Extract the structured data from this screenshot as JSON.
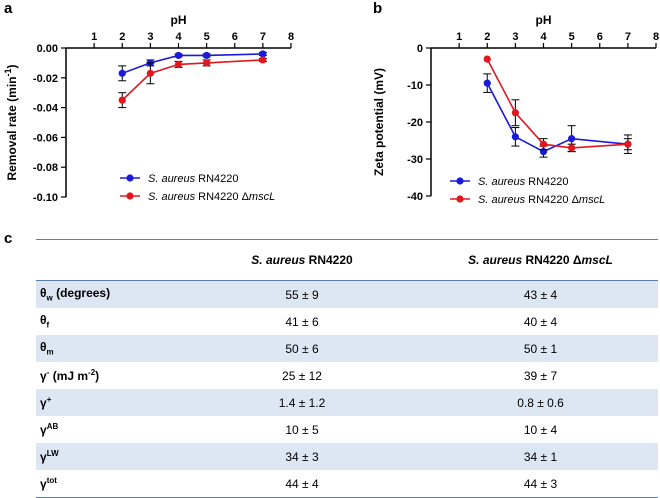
{
  "panels": {
    "a": "a",
    "b": "b",
    "c": "c"
  },
  "colors": {
    "series1": "#1a1adb",
    "series2": "#e3161d",
    "axis": "#000000",
    "table_shade": "#dde7f3",
    "table_rule": "#5b7fb3"
  },
  "chart_data": [
    {
      "type": "line",
      "title": "",
      "xlabel": "pH",
      "ylabel": "Removal rate (min",
      "ylabel_sup": "-1",
      "ylabel_close": ")",
      "xlim": [
        0,
        8
      ],
      "ylim": [
        -0.1,
        0.0
      ],
      "x_ticks": [
        1,
        2,
        3,
        4,
        5,
        6,
        7,
        8
      ],
      "x_tick_labels": [
        "1",
        "2",
        "3",
        "4",
        "5",
        "6",
        "7",
        "8"
      ],
      "y_ticks": [
        0.0,
        -0.02,
        -0.04,
        -0.06,
        -0.08,
        -0.1
      ],
      "y_tick_labels": [
        "0.00",
        "-0.02",
        "-0.04",
        "-0.06",
        "-0.08",
        "-0.10"
      ],
      "x_axis_position": "top",
      "legend_position": "bottom-center",
      "series": [
        {
          "name": "S. aureus RN4220",
          "name_italic": "S. aureus",
          "name_rest": " RN4220",
          "color": "#1a1adb",
          "x": [
            2,
            3,
            4,
            5,
            7
          ],
          "y": [
            -0.017,
            -0.01,
            -0.005,
            -0.005,
            -0.004
          ],
          "err": [
            0.005,
            0.002,
            0.001,
            0.001,
            0.001
          ]
        },
        {
          "name": "S. aureus RN4220 ΔmscL",
          "name_italic": "S. aureus",
          "name_rest": " RN4220 Δ",
          "name_italic2": "mscL",
          "color": "#e3161d",
          "x": [
            2,
            3,
            4,
            5,
            7
          ],
          "y": [
            -0.035,
            -0.017,
            -0.011,
            -0.01,
            -0.008
          ],
          "err": [
            0.005,
            0.007,
            0.002,
            0.002,
            0.001
          ]
        }
      ]
    },
    {
      "type": "line",
      "title": "",
      "xlabel": "pH",
      "ylabel": "Zeta potential (mV)",
      "xlim": [
        0,
        8
      ],
      "ylim": [
        -40,
        0
      ],
      "x_ticks": [
        1,
        2,
        3,
        4,
        5,
        6,
        7,
        8
      ],
      "x_tick_labels": [
        "1",
        "2",
        "3",
        "4",
        "5",
        "6",
        "7",
        "8"
      ],
      "y_ticks": [
        0,
        -10,
        -20,
        -30,
        -40
      ],
      "y_tick_labels": [
        "0",
        "-10",
        "-20",
        "-30",
        "-40"
      ],
      "x_axis_position": "top",
      "legend_position": "bottom-center",
      "series": [
        {
          "name": "S. aureus RN4220",
          "name_italic": "S. aureus",
          "name_rest": " RN4220",
          "color": "#1a1adb",
          "x": [
            2,
            3,
            4,
            5,
            7
          ],
          "y": [
            -9.5,
            -24,
            -28,
            -24.5,
            -26
          ],
          "err": [
            2.5,
            2.5,
            1.5,
            3.5,
            2.5
          ]
        },
        {
          "name": "S. aureus RN4220 ΔmscL",
          "name_italic": "S. aureus",
          "name_rest": " RN4220 Δ",
          "name_italic2": "mscL",
          "color": "#e3161d",
          "x": [
            2,
            3,
            4,
            5,
            7
          ],
          "y": [
            -3,
            -17.5,
            -26,
            -27,
            -26
          ],
          "err": [
            0,
            3.5,
            1.5,
            1.0,
            1.5
          ]
        }
      ]
    },
    {
      "type": "table",
      "columns": [
        "",
        "S. aureus RN4220",
        "S. aureus RN4220 ΔmscL"
      ],
      "col1_italic": "S. aureus",
      "col1_rest": " RN4220",
      "col2_italic": "S. aureus",
      "col2_rest": " RN4220 Δ",
      "col2_italic2": "mscL",
      "rows": [
        {
          "base": "θ",
          "sub": "w",
          "sup": "",
          "unit": " (degrees)",
          "unit_sup": "",
          "unit_end": "",
          "v1": "55 ± 9",
          "v2": "43 ± 4"
        },
        {
          "base": "θ",
          "sub": "f",
          "sup": "",
          "unit": "",
          "unit_sup": "",
          "unit_end": "",
          "v1": "41 ± 6",
          "v2": "40 ± 4"
        },
        {
          "base": "θ",
          "sub": "m",
          "sup": "",
          "unit": "",
          "unit_sup": "",
          "unit_end": "",
          "v1": "50 ± 6",
          "v2": "50 ± 1"
        },
        {
          "base": "γ",
          "sub": "",
          "sup": "-",
          "unit": " (mJ m",
          "unit_sup": "-2",
          "unit_end": ")",
          "v1": "25 ± 12",
          "v2": "39 ± 7"
        },
        {
          "base": "γ",
          "sub": "",
          "sup": "+",
          "unit": "",
          "unit_sup": "",
          "unit_end": "",
          "v1": "1.4 ± 1.2",
          "v2": "0.8 ± 0.6"
        },
        {
          "base": "γ",
          "sub": "",
          "sup": "AB",
          "unit": "",
          "unit_sup": "",
          "unit_end": "",
          "v1": "10 ± 5",
          "v2": "10 ± 4"
        },
        {
          "base": "γ",
          "sub": "",
          "sup": "LW",
          "unit": "",
          "unit_sup": "",
          "unit_end": "",
          "v1": "34 ± 3",
          "v2": "34 ± 1"
        },
        {
          "base": "γ",
          "sub": "",
          "sup": "tot",
          "unit": "",
          "unit_sup": "",
          "unit_end": "",
          "v1": "44 ± 4",
          "v2": "44 ± 3"
        }
      ]
    }
  ]
}
